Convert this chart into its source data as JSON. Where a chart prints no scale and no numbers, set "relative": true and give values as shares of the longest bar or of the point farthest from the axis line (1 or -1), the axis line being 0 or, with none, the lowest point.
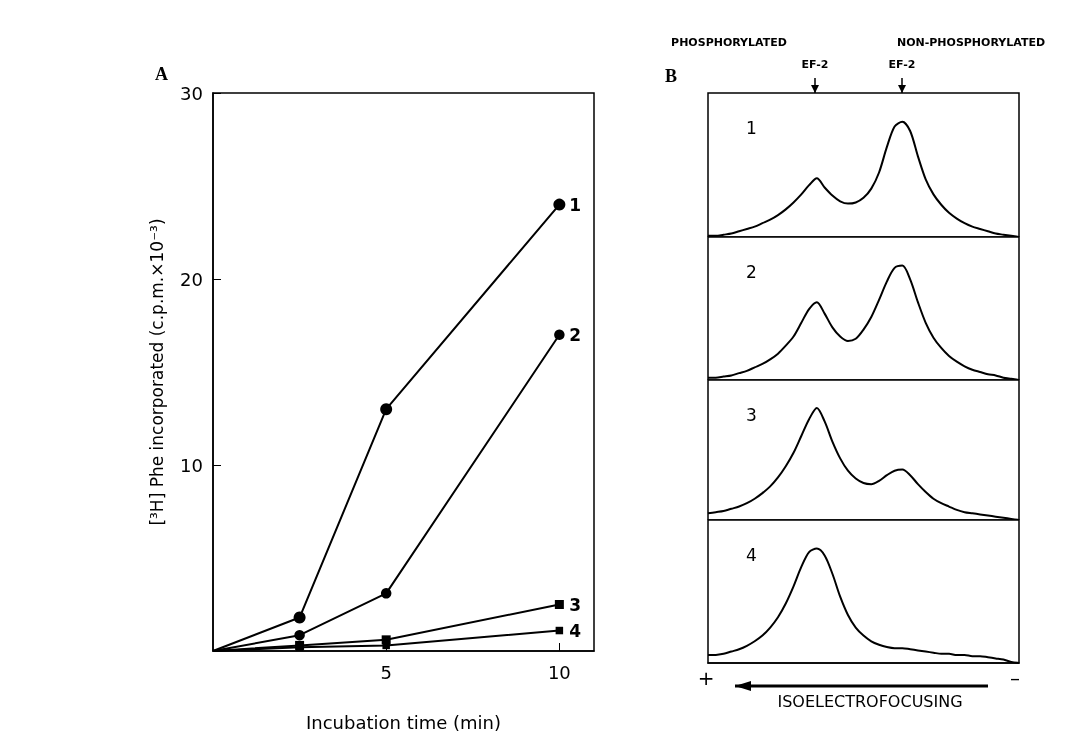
{
  "chart_data": [
    {
      "type": "line",
      "title": "A",
      "xlabel": "Incubation time (min)",
      "ylabel": "[³H] Phe incorporated (c.p.m.×10⁻³)",
      "x": [
        0,
        2.5,
        5,
        10
      ],
      "xlim": [
        0,
        11
      ],
      "xticks": [
        5,
        10
      ],
      "ylim": [
        0,
        30
      ],
      "yticks": [
        10,
        20,
        30
      ],
      "series": [
        {
          "name": "1",
          "color": "#000000",
          "marker": "circle",
          "values": [
            0,
            1.8,
            13,
            24
          ]
        },
        {
          "name": "2",
          "color": "#000000",
          "marker": "circle",
          "values": [
            0,
            0.85,
            3.1,
            17
          ]
        },
        {
          "name": "3",
          "color": "#000000",
          "marker": "square",
          "values": [
            0,
            0.3,
            0.6,
            2.5
          ]
        },
        {
          "name": "4",
          "color": "#000000",
          "marker": "square",
          "values": [
            0,
            0.2,
            0.3,
            1.1
          ]
        }
      ]
    },
    {
      "type": "line",
      "title": "B",
      "relative": true,
      "tick_labels": false,
      "annotations": [
        "PHOSPHORYLATED",
        "EF-2",
        "NON-PHOSPHORYLATED",
        "EF-2"
      ],
      "categories": [
        null,
        null,
        null,
        null,
        null,
        null,
        null,
        null,
        null,
        null,
        null,
        null,
        null,
        null,
        null,
        null,
        null,
        null,
        null,
        null,
        null,
        null,
        null,
        null,
        null,
        null,
        null,
        null,
        null,
        null,
        null,
        null,
        null,
        null,
        null,
        null,
        null,
        null,
        null,
        null,
        null
      ],
      "series": [
        {
          "name": "1",
          "color": "#000000",
          "values": [
            0.01,
            0.01,
            0.02,
            0.03,
            0.05,
            0.07,
            0.09,
            0.12,
            0.15,
            0.19,
            0.24,
            0.3,
            0.37,
            0.45,
            0.51,
            0.43,
            0.36,
            0.31,
            0.29,
            0.3,
            0.34,
            0.42,
            0.56,
            0.78,
            0.96,
            1,
            0.92,
            0.7,
            0.5,
            0.37,
            0.28,
            0.21,
            0.16,
            0.12,
            0.09,
            0.07,
            0.05,
            0.03,
            0.02,
            0.01,
            0
          ]
        }
      ]
    },
    {
      "type": "line",
      "relative": true,
      "tick_labels": false,
      "categories": [
        null,
        null,
        null,
        null,
        null,
        null,
        null,
        null,
        null,
        null,
        null,
        null,
        null,
        null,
        null,
        null,
        null,
        null,
        null,
        null,
        null,
        null,
        null,
        null,
        null,
        null,
        null,
        null,
        null,
        null,
        null,
        null,
        null,
        null,
        null,
        null,
        null,
        null,
        null,
        null,
        null
      ],
      "series": [
        {
          "name": "2",
          "color": "#000000",
          "values": [
            0.02,
            0.02,
            0.03,
            0.04,
            0.06,
            0.08,
            0.11,
            0.14,
            0.18,
            0.23,
            0.3,
            0.38,
            0.5,
            0.62,
            0.68,
            0.58,
            0.46,
            0.38,
            0.34,
            0.36,
            0.44,
            0.55,
            0.7,
            0.86,
            0.98,
            1,
            0.88,
            0.68,
            0.5,
            0.37,
            0.28,
            0.21,
            0.16,
            0.12,
            0.09,
            0.07,
            0.05,
            0.04,
            0.02,
            0.01,
            0
          ]
        }
      ]
    },
    {
      "type": "line",
      "relative": true,
      "tick_labels": false,
      "categories": [
        null,
        null,
        null,
        null,
        null,
        null,
        null,
        null,
        null,
        null,
        null,
        null,
        null,
        null,
        null,
        null,
        null,
        null,
        null,
        null,
        null,
        null,
        null,
        null,
        null,
        null,
        null,
        null,
        null,
        null,
        null,
        null,
        null,
        null,
        null,
        null,
        null,
        null,
        null,
        null,
        null
      ],
      "series": [
        {
          "name": "3",
          "color": "#000000",
          "values": [
            0.06,
            0.07,
            0.08,
            0.1,
            0.12,
            0.15,
            0.19,
            0.24,
            0.3,
            0.38,
            0.48,
            0.6,
            0.75,
            0.9,
            1,
            0.88,
            0.7,
            0.55,
            0.44,
            0.37,
            0.33,
            0.32,
            0.35,
            0.4,
            0.44,
            0.45,
            0.4,
            0.32,
            0.25,
            0.19,
            0.15,
            0.12,
            0.09,
            0.07,
            0.06,
            0.05,
            0.04,
            0.03,
            0.02,
            0.01,
            0
          ]
        }
      ]
    },
    {
      "type": "line",
      "relative": true,
      "tick_labels": false,
      "annotations": [
        "+",
        "ISOELECTROFOCUSING",
        "–"
      ],
      "categories": [
        null,
        null,
        null,
        null,
        null,
        null,
        null,
        null,
        null,
        null,
        null,
        null,
        null,
        null,
        null,
        null,
        null,
        null,
        null,
        null,
        null,
        null,
        null,
        null,
        null,
        null,
        null,
        null,
        null,
        null,
        null,
        null,
        null,
        null,
        null,
        null,
        null,
        null,
        null,
        null,
        null
      ],
      "series": [
        {
          "name": "4",
          "color": "#000000",
          "values": [
            0.07,
            0.07,
            0.08,
            0.1,
            0.12,
            0.15,
            0.19,
            0.24,
            0.31,
            0.4,
            0.52,
            0.67,
            0.84,
            0.97,
            1,
            0.94,
            0.78,
            0.58,
            0.42,
            0.31,
            0.24,
            0.19,
            0.16,
            0.14,
            0.13,
            0.13,
            0.12,
            0.11,
            0.1,
            0.09,
            0.08,
            0.08,
            0.07,
            0.07,
            0.06,
            0.06,
            0.05,
            0.04,
            0.03,
            0.01,
            0
          ]
        }
      ]
    }
  ]
}
